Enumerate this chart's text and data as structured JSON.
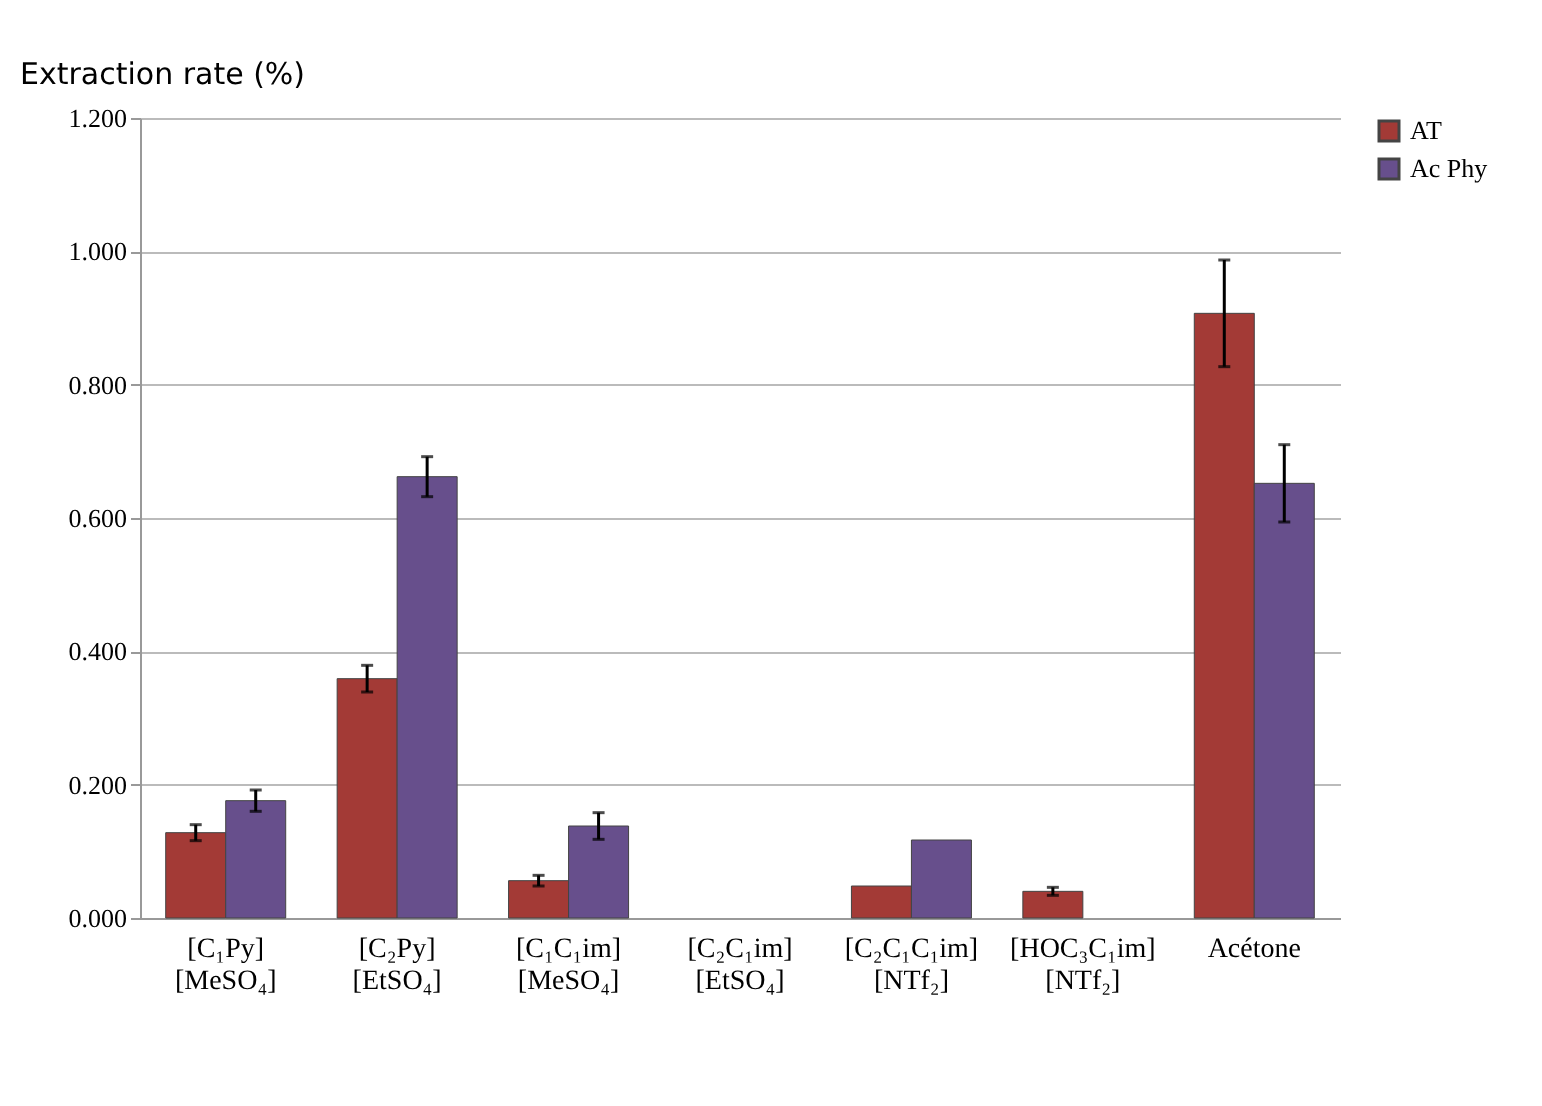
{
  "chart_data": {
    "type": "bar",
    "ylabel": "Extraction rate (%)",
    "categories": [
      "[C₁Py]\n[MeSO₄]",
      "[C₂Py]\n[EtSO₄]",
      "[C₁C₁im]\n[MeSO₄]",
      "[C₂C₁im]\n[EtSO₄]",
      "[C₂C₁C₁im]\n[NTf₂]",
      "[HOC₃C₁im]\n[NTf₂]",
      "Acétone"
    ],
    "series": [
      {
        "name": "AT",
        "color": "#a33a36",
        "values": [
          0.128,
          0.359,
          0.056,
          null,
          0.048,
          0.04,
          0.907
        ],
        "errors": [
          0.012,
          0.02,
          0.008,
          null,
          null,
          0.006,
          0.08
        ]
      },
      {
        "name": "Ac Phy",
        "color": "#674f8c",
        "values": [
          0.176,
          0.662,
          0.138,
          null,
          0.117,
          null,
          0.652
        ],
        "errors": [
          0.016,
          0.03,
          0.02,
          null,
          null,
          null,
          0.058
        ]
      }
    ],
    "ylim": [
      0,
      1.2
    ],
    "yticks": [
      {
        "value": 0,
        "label": "0.000"
      },
      {
        "value": 0.2,
        "label": "0.200"
      },
      {
        "value": 0.4,
        "label": "0.400"
      },
      {
        "value": 0.6,
        "label": "0.600"
      },
      {
        "value": 0.8,
        "label": "0.800"
      },
      {
        "value": 1.0,
        "label": "1.000"
      },
      {
        "value": 1.2,
        "label": "1.200"
      }
    ],
    "grid": "y",
    "legend": "top right"
  }
}
